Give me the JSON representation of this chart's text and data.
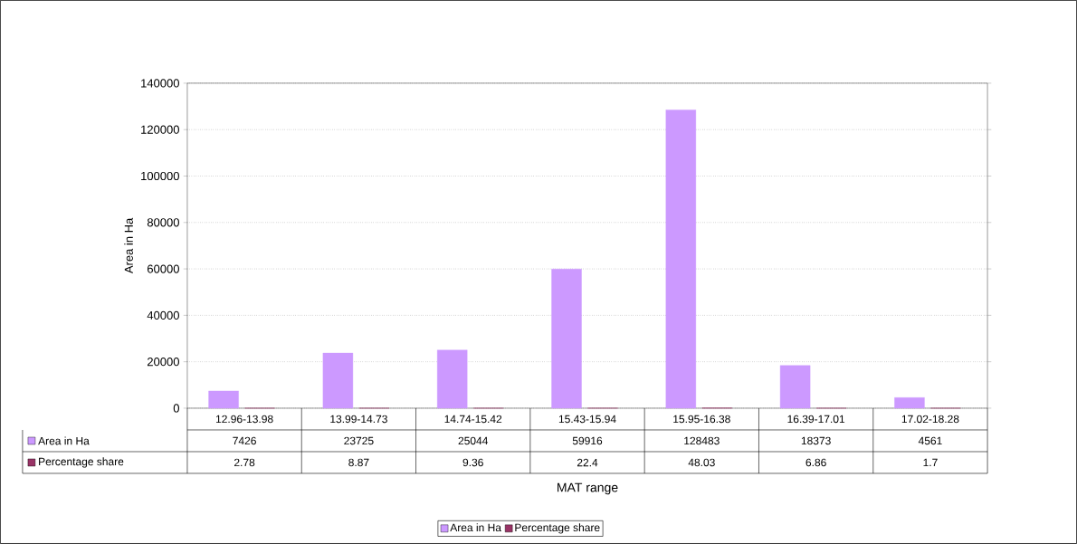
{
  "chart_data": {
    "type": "bar",
    "xlabel": "MAT range",
    "ylabel": "Area in Ha",
    "categories": [
      "12.96-13.98",
      "13.99-14.73",
      "14.74-15.42",
      "15.43-15.94",
      "15.95-16.38",
      "16.39-17.01",
      "17.02-18.28"
    ],
    "series": [
      {
        "name": "Area in Ha",
        "color": "#cc99ff",
        "values": [
          7426,
          23725,
          25044,
          59916,
          128483,
          18373,
          4561
        ]
      },
      {
        "name": "Percentage share",
        "color": "#993366",
        "values": [
          2.78,
          8.87,
          9.36,
          22.4,
          48.03,
          6.86,
          1.7
        ]
      }
    ],
    "ylim": [
      0,
      140000
    ],
    "yticks": [
      0,
      20000,
      40000,
      60000,
      80000,
      100000,
      120000,
      140000
    ],
    "grid": "y",
    "legend": "bottom",
    "data_labels": true
  }
}
